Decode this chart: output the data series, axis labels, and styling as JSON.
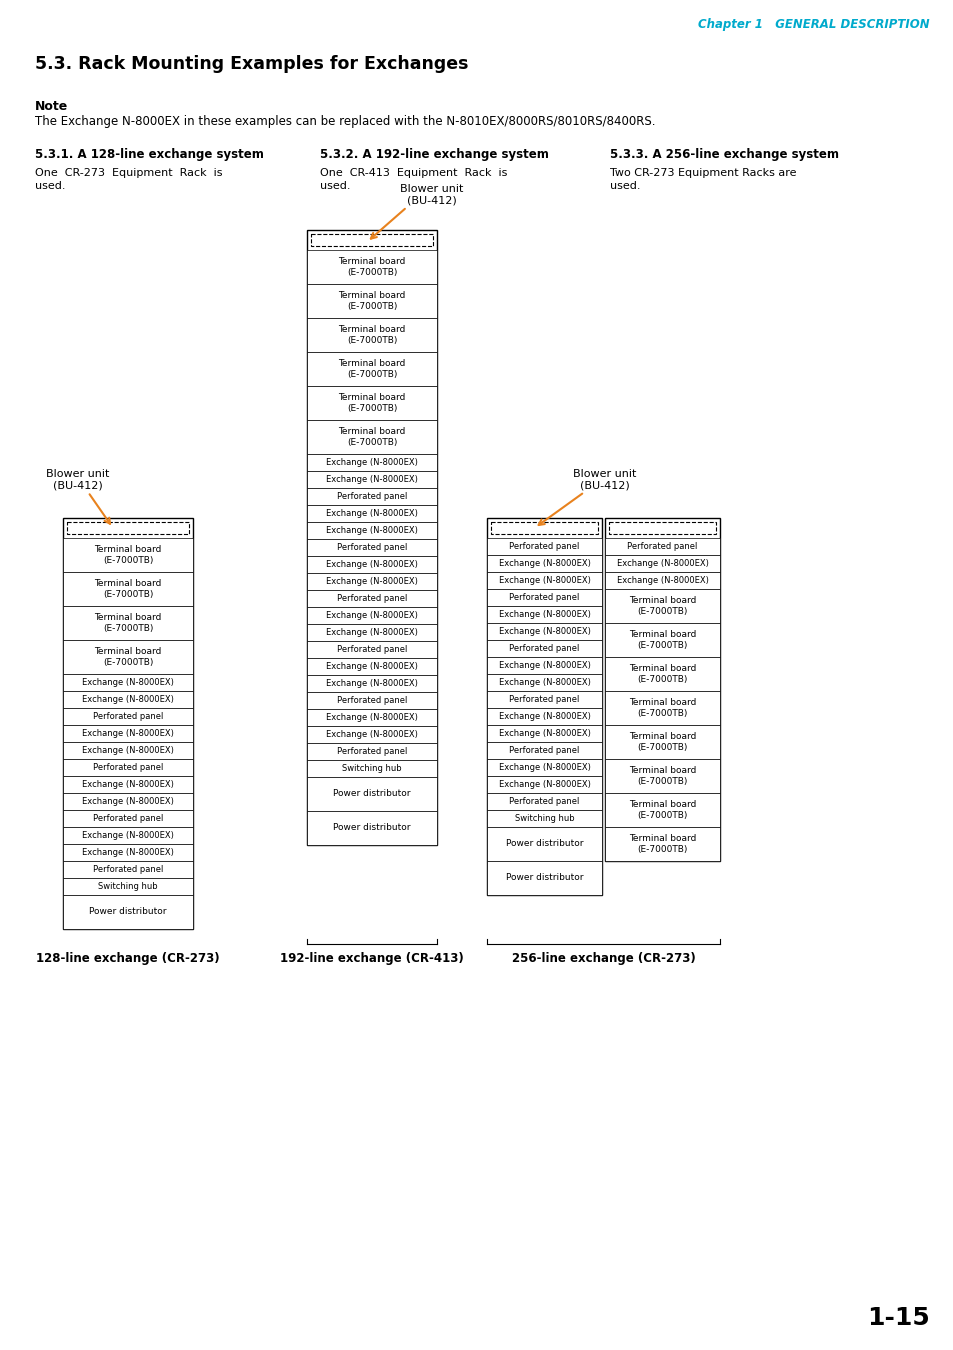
{
  "title": "5.3. Rack Mounting Examples for Exchanges",
  "chapter_header": "Chapter 1   GENERAL DESCRIPTION",
  "note_label": "Note",
  "note_text": "The Exchange N-8000EX in these examples can be replaced with the N-8010EX/8000RS/8010RS/8400RS.",
  "sec_headers": [
    "5.3.1. A 128-line exchange system",
    "5.3.2. A 192-line exchange system",
    "5.3.3. A 256-line exchange system"
  ],
  "sec_desc": [
    "One  CR-273  Equipment  Rack  is\nused.",
    "One  CR-413  Equipment  Rack  is\nused.",
    "Two CR-273 Equipment Racks are\nused."
  ],
  "rack1_items": [
    [
      "Terminal board\n(E-7000TB)",
      2
    ],
    [
      "Terminal board\n(E-7000TB)",
      2
    ],
    [
      "Terminal board\n(E-7000TB)",
      2
    ],
    [
      "Terminal board\n(E-7000TB)",
      2
    ],
    [
      "Exchange (N-8000EX)",
      1
    ],
    [
      "Exchange (N-8000EX)",
      1
    ],
    [
      "Perforated panel",
      1
    ],
    [
      "Exchange (N-8000EX)",
      1
    ],
    [
      "Exchange (N-8000EX)",
      1
    ],
    [
      "Perforated panel",
      1
    ],
    [
      "Exchange (N-8000EX)",
      1
    ],
    [
      "Exchange (N-8000EX)",
      1
    ],
    [
      "Perforated panel",
      1
    ],
    [
      "Exchange (N-8000EX)",
      1
    ],
    [
      "Exchange (N-8000EX)",
      1
    ],
    [
      "Perforated panel",
      1
    ],
    [
      "Switching hub",
      1
    ],
    [
      "Power distributor",
      2
    ]
  ],
  "rack2_items": [
    [
      "Terminal board\n(E-7000TB)",
      2
    ],
    [
      "Terminal board\n(E-7000TB)",
      2
    ],
    [
      "Terminal board\n(E-7000TB)",
      2
    ],
    [
      "Terminal board\n(E-7000TB)",
      2
    ],
    [
      "Terminal board\n(E-7000TB)",
      2
    ],
    [
      "Terminal board\n(E-7000TB)",
      2
    ],
    [
      "Exchange (N-8000EX)",
      1
    ],
    [
      "Exchange (N-8000EX)",
      1
    ],
    [
      "Perforated panel",
      1
    ],
    [
      "Exchange (N-8000EX)",
      1
    ],
    [
      "Exchange (N-8000EX)",
      1
    ],
    [
      "Perforated panel",
      1
    ],
    [
      "Exchange (N-8000EX)",
      1
    ],
    [
      "Exchange (N-8000EX)",
      1
    ],
    [
      "Perforated panel",
      1
    ],
    [
      "Exchange (N-8000EX)",
      1
    ],
    [
      "Exchange (N-8000EX)",
      1
    ],
    [
      "Perforated panel",
      1
    ],
    [
      "Exchange (N-8000EX)",
      1
    ],
    [
      "Exchange (N-8000EX)",
      1
    ],
    [
      "Perforated panel",
      1
    ],
    [
      "Exchange (N-8000EX)",
      1
    ],
    [
      "Exchange (N-8000EX)",
      1
    ],
    [
      "Perforated panel",
      1
    ],
    [
      "Switching hub",
      1
    ],
    [
      "Power distributor",
      2
    ],
    [
      "Power distributor",
      2
    ]
  ],
  "rack3a_items": [
    [
      "Perforated panel",
      1
    ],
    [
      "Exchange (N-8000EX)",
      1
    ],
    [
      "Exchange (N-8000EX)",
      1
    ],
    [
      "Perforated panel",
      1
    ],
    [
      "Exchange (N-8000EX)",
      1
    ],
    [
      "Exchange (N-8000EX)",
      1
    ],
    [
      "Perforated panel",
      1
    ],
    [
      "Exchange (N-8000EX)",
      1
    ],
    [
      "Exchange (N-8000EX)",
      1
    ],
    [
      "Perforated panel",
      1
    ],
    [
      "Exchange (N-8000EX)",
      1
    ],
    [
      "Exchange (N-8000EX)",
      1
    ],
    [
      "Perforated panel",
      1
    ],
    [
      "Exchange (N-8000EX)",
      1
    ],
    [
      "Exchange (N-8000EX)",
      1
    ],
    [
      "Perforated panel",
      1
    ],
    [
      "Switching hub",
      1
    ],
    [
      "Power distributor",
      2
    ],
    [
      "Power distributor",
      2
    ]
  ],
  "rack3b_items": [
    [
      "Perforated panel",
      1
    ],
    [
      "Exchange (N-8000EX)",
      1
    ],
    [
      "Exchange (N-8000EX)",
      1
    ],
    [
      "Terminal board\n(E-7000TB)",
      2
    ],
    [
      "Terminal board\n(E-7000TB)",
      2
    ],
    [
      "Terminal board\n(E-7000TB)",
      2
    ],
    [
      "Terminal board\n(E-7000TB)",
      2
    ],
    [
      "Terminal board\n(E-7000TB)",
      2
    ],
    [
      "Terminal board\n(E-7000TB)",
      2
    ],
    [
      "Terminal board\n(E-7000TB)",
      2
    ],
    [
      "Terminal board\n(E-7000TB)",
      2
    ]
  ],
  "footer_labels": [
    "128-line exchange (CR-273)",
    "192-line exchange (CR-413)",
    "256-line exchange (CR-273)"
  ],
  "page_number": "1-15",
  "orange_color": "#E8821E",
  "blower_label": "Blower unit\n(BU-412)"
}
